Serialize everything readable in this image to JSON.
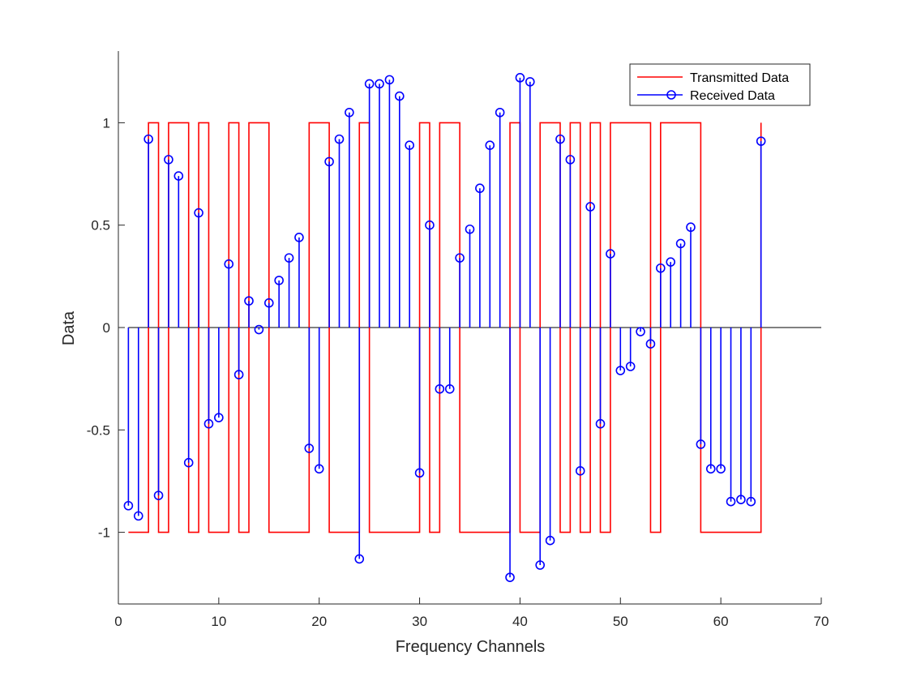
{
  "chart_data": {
    "type": "line",
    "title": "",
    "xlabel": "Frequency Channels",
    "ylabel": "Data",
    "xlim": [
      0,
      70
    ],
    "ylim": [
      -1.35,
      1.35
    ],
    "xticks": [
      0,
      10,
      20,
      30,
      40,
      50,
      60,
      70
    ],
    "xtick_labels": [
      "0",
      "10",
      "20",
      "30",
      "40",
      "50",
      "60",
      "70"
    ],
    "yticks": [
      -1,
      -0.5,
      0,
      0.5,
      1
    ],
    "ytick_labels": [
      "-1",
      "-0.5",
      "0",
      "0.5",
      "1"
    ],
    "grid": false,
    "legend_position": "top-right",
    "x": [
      1,
      2,
      3,
      4,
      5,
      6,
      7,
      8,
      9,
      10,
      11,
      12,
      13,
      14,
      15,
      16,
      17,
      18,
      19,
      20,
      21,
      22,
      23,
      24,
      25,
      26,
      27,
      28,
      29,
      30,
      31,
      32,
      33,
      34,
      35,
      36,
      37,
      38,
      39,
      40,
      41,
      42,
      43,
      44,
      45,
      46,
      47,
      48,
      49,
      50,
      51,
      52,
      53,
      54,
      55,
      56,
      57,
      58,
      59,
      60,
      61,
      62,
      63,
      64
    ],
    "series": [
      {
        "name": "Transmitted Data",
        "style": "stairs",
        "color": "#ff0000",
        "values": [
          -1,
          -1,
          1,
          -1,
          1,
          1,
          -1,
          1,
          -1,
          -1,
          1,
          -1,
          1,
          1,
          -1,
          -1,
          -1,
          -1,
          1,
          1,
          -1,
          -1,
          -1,
          1,
          -1,
          -1,
          -1,
          -1,
          -1,
          1,
          -1,
          1,
          1,
          -1,
          -1,
          -1,
          -1,
          -1,
          1,
          -1,
          -1,
          1,
          1,
          -1,
          1,
          -1,
          1,
          -1,
          1,
          1,
          1,
          1,
          -1,
          1,
          1,
          1,
          1,
          -1,
          -1,
          -1,
          -1,
          -1,
          -1,
          1
        ]
      },
      {
        "name": "Received Data",
        "style": "stem",
        "color": "#0000ff",
        "values": [
          -0.87,
          -0.92,
          0.92,
          -0.82,
          0.82,
          0.74,
          -0.66,
          0.56,
          -0.47,
          -0.44,
          0.31,
          -0.23,
          0.13,
          -0.01,
          0.12,
          0.23,
          0.34,
          0.44,
          -0.59,
          -0.69,
          0.81,
          0.92,
          1.05,
          -1.13,
          1.19,
          1.19,
          1.21,
          1.13,
          0.89,
          -0.71,
          0.5,
          -0.3,
          -0.3,
          0.34,
          0.48,
          0.68,
          0.89,
          1.05,
          -1.22,
          1.22,
          1.2,
          -1.16,
          -1.04,
          0.92,
          0.82,
          -0.7,
          0.59,
          -0.47,
          0.36,
          -0.21,
          -0.19,
          -0.02,
          -0.08,
          0.29,
          0.32,
          0.41,
          0.49,
          -0.57,
          -0.69,
          -0.69,
          -0.85,
          -0.84,
          -0.85,
          0.91
        ]
      }
    ],
    "zero_line_color": "#000000"
  }
}
